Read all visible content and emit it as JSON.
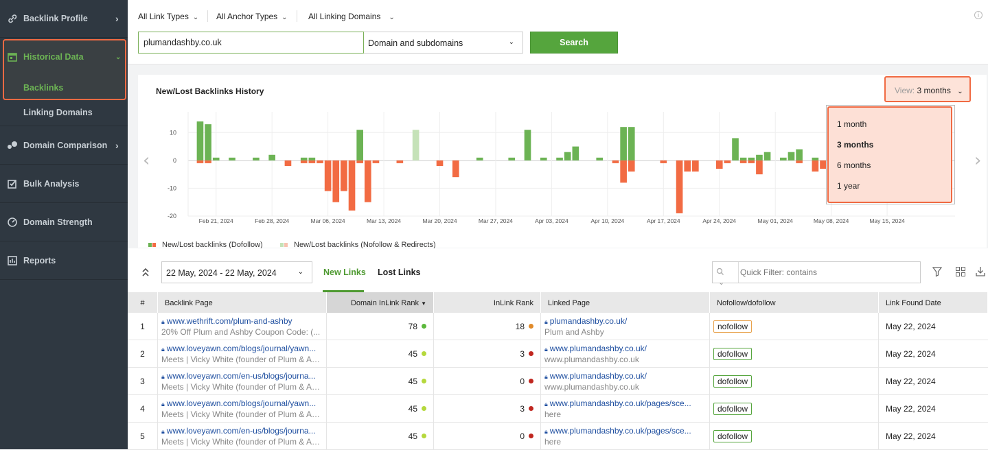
{
  "sidebar": {
    "items": [
      {
        "label": "Backlink Profile",
        "icon": "link-icon"
      },
      {
        "label": "Historical Data",
        "icon": "calendar-icon"
      },
      {
        "label": "Domain Comparison",
        "icon": "comparison-icon"
      },
      {
        "label": "Bulk Analysis",
        "icon": "checklist-icon"
      },
      {
        "label": "Domain Strength",
        "icon": "gauge-icon"
      },
      {
        "label": "Reports",
        "icon": "reports-icon"
      }
    ],
    "sub_items": [
      "Backlinks",
      "Linking Domains"
    ]
  },
  "filters": {
    "link_types": "All Link Types",
    "anchor_types": "All Anchor Types",
    "linking_domains": "All Linking Domains"
  },
  "search": {
    "domain_value": "plumandashby.co.uk",
    "scope": "Domain and subdomains",
    "button": "Search"
  },
  "chart": {
    "title": "New/Lost Backlinks History",
    "view_label": "View:",
    "view_value": "3 months",
    "view_options": [
      "1 month",
      "3 months",
      "6 months",
      "1 year"
    ],
    "legend": [
      "New/Lost backlinks (Dofollow)",
      "New/Lost backlinks (Nofollow & Redirects)"
    ]
  },
  "chart_data": {
    "type": "bar",
    "title": "New/Lost Backlinks History",
    "ylim": [
      -20,
      15
    ],
    "y_ticks": [
      "10",
      "0",
      "-10",
      "-20"
    ],
    "x_tick_labels": [
      "Feb 21, 2024",
      "Feb 28, 2024",
      "Mar 06, 2024",
      "Mar 13, 2024",
      "Mar 20, 2024",
      "Mar 27, 2024",
      "Apr 03, 2024",
      "Apr 10, 2024",
      "Apr 17, 2024",
      "Apr 24, 2024",
      "May 01, 2024",
      "May 08, 2024",
      "May 15, 2024"
    ],
    "series": [
      {
        "name": "New/Lost backlinks (Dofollow)",
        "new_color": "#6cb354",
        "lost_color": "#f26b43",
        "new": [
          0,
          14,
          13,
          1,
          0,
          1,
          0,
          0,
          1,
          0,
          2,
          0,
          0,
          0,
          1,
          1,
          0,
          0,
          0,
          0,
          0,
          11,
          0,
          0,
          0,
          0,
          0,
          0,
          0,
          0,
          0,
          0,
          0,
          0,
          0,
          0,
          1,
          0,
          0,
          0,
          1,
          0,
          11,
          0,
          1,
          0,
          1,
          3,
          5,
          0,
          0,
          1,
          0,
          0,
          12,
          12,
          0,
          0,
          0,
          0,
          0,
          0,
          0,
          0,
          0,
          0,
          0,
          0,
          8,
          1,
          1,
          2,
          3,
          0,
          1,
          3,
          4,
          0,
          1,
          0,
          2,
          0,
          0,
          0,
          0,
          0,
          0,
          0,
          0,
          0,
          2,
          0,
          0,
          0,
          0,
          0
        ],
        "lost": [
          0,
          -1,
          -1,
          0,
          0,
          0,
          0,
          0,
          0,
          0,
          0,
          0,
          -2,
          0,
          -1,
          -1,
          -1,
          -11,
          -15,
          -11,
          -18,
          -1,
          -15,
          -1,
          0,
          0,
          -1,
          0,
          0,
          0,
          0,
          -2,
          0,
          -6,
          0,
          0,
          0,
          0,
          0,
          0,
          0,
          0,
          0,
          0,
          0,
          0,
          0,
          0,
          0,
          0,
          0,
          0,
          0,
          -1,
          -8,
          -4,
          0,
          0,
          0,
          -1,
          0,
          -19,
          -4,
          -4,
          0,
          0,
          -3,
          -1,
          0,
          -1,
          -1,
          -5,
          0,
          0,
          0,
          0,
          -1,
          0,
          -4,
          -3,
          -1,
          0,
          0,
          0,
          0,
          0,
          0,
          -1,
          0,
          0,
          0,
          -3,
          -5,
          0,
          0,
          0
        ]
      },
      {
        "name": "New/Lost backlinks (Nofollow & Redirects)",
        "new_color": "#c5e2b8",
        "lost_color": "#f7c2b0",
        "new": [
          0,
          0,
          0,
          0,
          0,
          0,
          0,
          0,
          0,
          0,
          0,
          0,
          0,
          0,
          0,
          0,
          0,
          0,
          0,
          0,
          0,
          0,
          0,
          0,
          0,
          0,
          0,
          0,
          11,
          0,
          0,
          0,
          0,
          0,
          0,
          0,
          0,
          0,
          0,
          0,
          0,
          0,
          0,
          0,
          0,
          0,
          0,
          0,
          0,
          0,
          0,
          0,
          0,
          0,
          0,
          0,
          0,
          0,
          0,
          0,
          0,
          0,
          0,
          0,
          0,
          0,
          0,
          0,
          0,
          0,
          0,
          0,
          0,
          0,
          0,
          0,
          0,
          0,
          0,
          0,
          0,
          0,
          0,
          0,
          0,
          0,
          0,
          0,
          0,
          0,
          0,
          0,
          0,
          0,
          0,
          0
        ],
        "lost": [
          0,
          0,
          0,
          0,
          0,
          0,
          0,
          0,
          0,
          0,
          0,
          0,
          0,
          0,
          0,
          0,
          0,
          0,
          0,
          0,
          0,
          0,
          0,
          0,
          0,
          0,
          0,
          0,
          0,
          0,
          0,
          0,
          0,
          0,
          0,
          0,
          0,
          0,
          0,
          0,
          0,
          0,
          0,
          0,
          0,
          0,
          0,
          0,
          0,
          0,
          0,
          0,
          0,
          0,
          0,
          0,
          0,
          0,
          0,
          0,
          0,
          0,
          0,
          0,
          0,
          0,
          0,
          0,
          0,
          0,
          0,
          0,
          0,
          0,
          0,
          0,
          0,
          0,
          0,
          0,
          0,
          0,
          0,
          0,
          0,
          0,
          0,
          0,
          0,
          0,
          0,
          0,
          0,
          0,
          0,
          0
        ]
      }
    ],
    "x_range": [
      "Feb 18, 2024",
      "May 22, 2024"
    ],
    "grid": true,
    "legend_position": "bottom-left"
  },
  "tabs": {
    "date_range": "22 May, 2024 - 22 May, 2024",
    "new_links": "New Links",
    "lost_links": "Lost Links",
    "quick_filter_placeholder": "Quick Filter: contains"
  },
  "table": {
    "columns": [
      "#",
      "Backlink Page",
      "Domain InLink Rank",
      "InLink Rank",
      "Linked Page",
      "Nofollow/dofollow",
      "Link Found Date"
    ],
    "rows": [
      {
        "n": "1",
        "backlink_url": "www.wethrift.com/plum-and-ashby",
        "backlink_title": "20% Off Plum and Ashby Coupon Code: (...",
        "domain_rank": "78",
        "domain_rank_color": "#5bb83b",
        "inlink_rank": "18",
        "inlink_rank_color": "#e08a2a",
        "linked_url": "plumandashby.co.uk/",
        "linked_anchor": "Plum and Ashby",
        "follow": "nofollow",
        "date": "May 22, 2024"
      },
      {
        "n": "2",
        "backlink_url": "www.loveyawn.com/blogs/journal/yawn...",
        "backlink_title": "Meets | Vicky White (founder of Plum & As...",
        "domain_rank": "45",
        "domain_rank_color": "#b5d83c",
        "inlink_rank": "3",
        "inlink_rank_color": "#c0261f",
        "linked_url": "www.plumandashby.co.uk/",
        "linked_anchor": "www.plumandashby.co.uk",
        "follow": "dofollow",
        "date": "May 22, 2024"
      },
      {
        "n": "3",
        "backlink_url": "www.loveyawn.com/en-us/blogs/journa...",
        "backlink_title": "Meets | Vicky White (founder of Plum & As...",
        "domain_rank": "45",
        "domain_rank_color": "#b5d83c",
        "inlink_rank": "0",
        "inlink_rank_color": "#c0261f",
        "linked_url": "www.plumandashby.co.uk/",
        "linked_anchor": "www.plumandashby.co.uk",
        "follow": "dofollow",
        "date": "May 22, 2024"
      },
      {
        "n": "4",
        "backlink_url": "www.loveyawn.com/blogs/journal/yawn...",
        "backlink_title": "Meets | Vicky White (founder of Plum & As...",
        "domain_rank": "45",
        "domain_rank_color": "#b5d83c",
        "inlink_rank": "3",
        "inlink_rank_color": "#c0261f",
        "linked_url": "www.plumandashby.co.uk/pages/sce...",
        "linked_anchor": "here",
        "follow": "dofollow",
        "date": "May 22, 2024"
      },
      {
        "n": "5",
        "backlink_url": "www.loveyawn.com/en-us/blogs/journa...",
        "backlink_title": "Meets | Vicky White (founder of Plum & As...",
        "domain_rank": "45",
        "domain_rank_color": "#b5d83c",
        "inlink_rank": "0",
        "inlink_rank_color": "#c0261f",
        "linked_url": "www.plumandashby.co.uk/pages/sce...",
        "linked_anchor": "here",
        "follow": "dofollow",
        "date": "May 22, 2024"
      }
    ]
  }
}
